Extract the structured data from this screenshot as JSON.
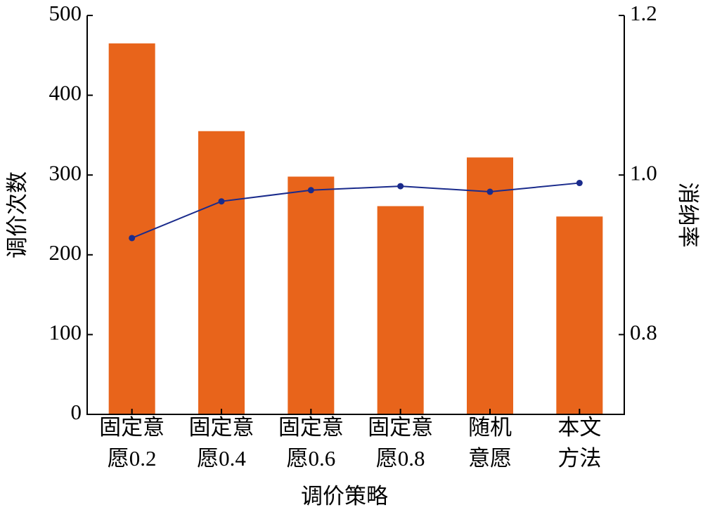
{
  "chart_data": {
    "type": "bar-line",
    "xlabel": "调价策略",
    "ylabel": "调价次数",
    "y2label": "消纳率",
    "categories": [
      [
        "固定意",
        "愿0.2"
      ],
      [
        "固定意",
        "愿0.4"
      ],
      [
        "固定意",
        "愿0.6"
      ],
      [
        "固定意",
        "愿0.8"
      ],
      [
        "随机",
        "意愿"
      ],
      [
        "本文",
        "方法"
      ]
    ],
    "series": [
      {
        "type": "bar",
        "color": "#e8641b",
        "values": [
          465,
          355,
          298,
          261,
          322,
          248
        ]
      },
      {
        "type": "line",
        "color": "#1a2b8c",
        "axis": "y2",
        "values": [
          0.921,
          0.967,
          0.981,
          0.986,
          0.979,
          0.99
        ]
      }
    ],
    "ylim": [
      0,
      500
    ],
    "yticks": [
      0,
      100,
      200,
      300,
      400,
      500
    ],
    "y2lim": [
      0.7,
      1.2
    ],
    "y2ticks": [
      0.8,
      {
        "value": 1,
        "label": "1.0"
      },
      1.2
    ]
  }
}
